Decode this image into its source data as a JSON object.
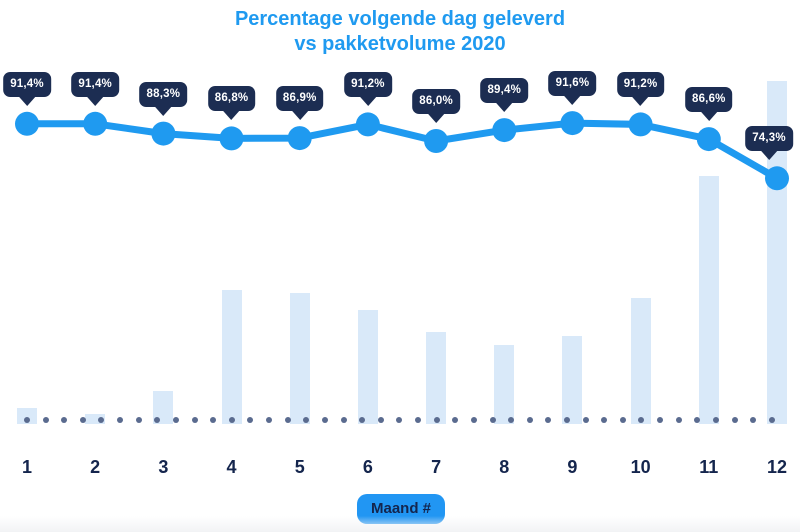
{
  "title": {
    "line1": "Percentage volgende dag geleverd",
    "line2": "vs pakketvolume 2020"
  },
  "x_axis": {
    "badge_label": "Maand #",
    "categories": [
      "1",
      "2",
      "3",
      "4",
      "5",
      "6",
      "7",
      "8",
      "9",
      "10",
      "11",
      "12"
    ]
  },
  "chart_data": {
    "type": "combo (line over bars)",
    "title": "Percentage volgende dag geleverd vs pakketvolume 2020",
    "xlabel": "Maand #",
    "categories": [
      1,
      2,
      3,
      4,
      5,
      6,
      7,
      8,
      9,
      10,
      11,
      12
    ],
    "grid": false,
    "legend": "none",
    "baseline_style": "dotted row of slate dots at x-axis",
    "series": [
      {
        "name": "Percentage volgende dag geleverd",
        "type": "line",
        "unit": "%",
        "values": [
          91.4,
          91.4,
          88.3,
          86.8,
          86.9,
          91.2,
          86.0,
          89.4,
          91.6,
          91.2,
          86.6,
          74.3
        ],
        "labels": [
          "91,4%",
          "91,4%",
          "88,3%",
          "86,8%",
          "86,9%",
          "91,2%",
          "86,0%",
          "89,4%",
          "91,6%",
          "91,2%",
          "86,6%",
          "74,3%"
        ],
        "color": "#1f9af0"
      },
      {
        "name": "Pakketvolume 2020",
        "type": "bar",
        "unit": "relative index (no y-axis shown), December = 100",
        "values": [
          4.7,
          2.9,
          9.6,
          39.1,
          38.2,
          33.2,
          26.8,
          23.0,
          25.7,
          36.7,
          72.3,
          100
        ],
        "color": "#d9e9f9"
      }
    ]
  },
  "colors": {
    "title_blue": "#1f9af0",
    "line_blue": "#1f9af0",
    "bar_light_blue": "#d9e9f9",
    "tooltip_navy": "#1c2d52",
    "tooltip_text": "#ffffff",
    "axis_label_navy": "#14254d",
    "baseline_dot_slate": "#5a6b8f",
    "badge_blue": "#2196f3",
    "background": "#ffffff"
  }
}
